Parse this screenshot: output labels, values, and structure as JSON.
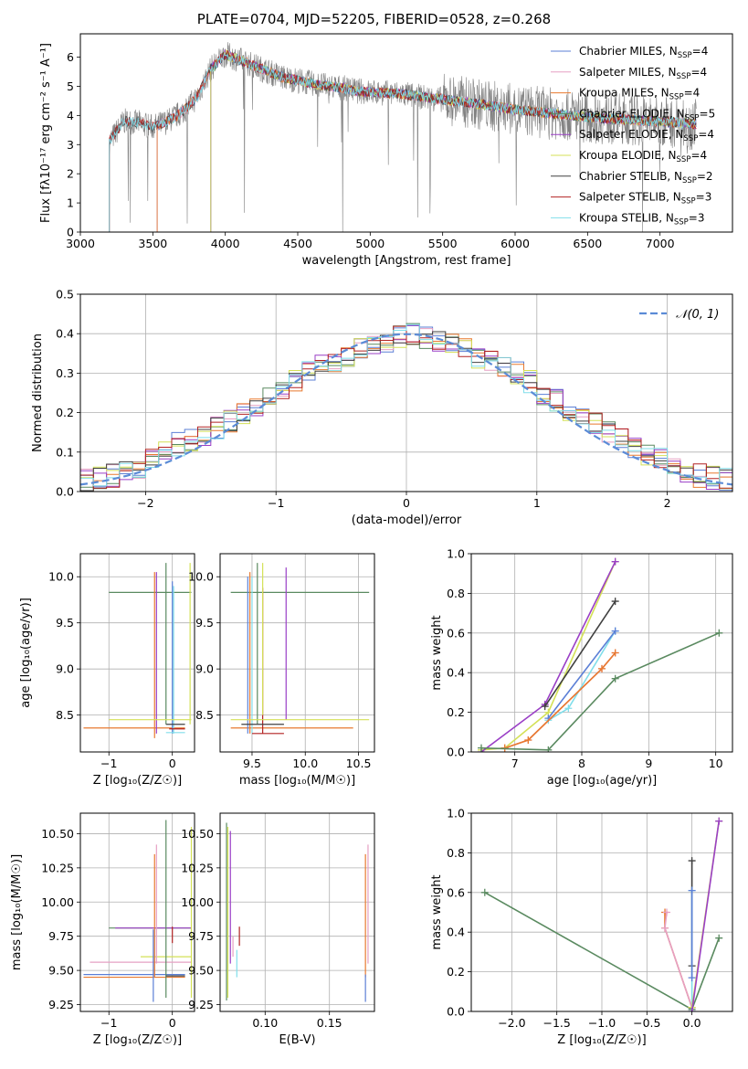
{
  "figure_title": "PLATE=0704, MJD=52205, FIBERID=0528, z=0.268",
  "colors": {
    "Chabrier MILES": "#5b7fd6",
    "Salpeter MILES": "#e6a0c4",
    "Kroupa MILES": "#e8792f",
    "Chabrier ELODIE": "#5a8a60",
    "Salpeter ELODIE": "#9a3fc6",
    "Kroupa ELODIE": "#d4e157",
    "Chabrier STELIB": "#404040",
    "Salpeter STELIB": "#b22222",
    "Kroupa STELIB": "#80deea",
    "data": "#808080",
    "normal": "#5b8bd6"
  },
  "legend_spectrum": [
    {
      "name": "Chabrier MILES",
      "label": "Chabrier MILES, N",
      "n": "=4"
    },
    {
      "name": "Salpeter MILES",
      "label": "Salpeter MILES, N",
      "n": "=4"
    },
    {
      "name": "Kroupa MILES",
      "label": "Kroupa MILES, N",
      "n": "=4"
    },
    {
      "name": "Chabrier ELODIE",
      "label": "Chabrier ELODIE, N",
      "n": "=5"
    },
    {
      "name": "Salpeter ELODIE",
      "label": "Salpeter ELODIE, N",
      "n": "=4"
    },
    {
      "name": "Kroupa ELODIE",
      "label": "Kroupa ELODIE, N",
      "n": "=4"
    },
    {
      "name": "Chabrier STELIB",
      "label": "Chabrier STELIB, N",
      "n": "=2"
    },
    {
      "name": "Salpeter STELIB",
      "label": "Salpeter STELIB, N",
      "n": "=3"
    },
    {
      "name": "Kroupa STELIB",
      "label": "Kroupa STELIB, N",
      "n": "=3"
    }
  ],
  "legend_sub": "SSP",
  "legend_normal": "𝒩(0, 1)",
  "chart_data": [
    {
      "id": "spectrum",
      "type": "line",
      "xlabel": "wavelength [Angstrom, rest frame]",
      "ylabel": "Flux [fλ10⁻¹⁷ erg cm⁻² s⁻¹ A⁻¹]",
      "xlim": [
        3000,
        7500
      ],
      "ylim": [
        0,
        6.8
      ],
      "xticks": [
        3000,
        3500,
        4000,
        4500,
        5000,
        5500,
        6000,
        6500,
        7000
      ],
      "yticks": [
        0,
        1,
        2,
        3,
        4,
        5,
        6
      ],
      "grid": false,
      "legend": "upper right",
      "continuum": [
        [
          3200,
          3.1
        ],
        [
          3300,
          3.8
        ],
        [
          3400,
          3.75
        ],
        [
          3500,
          3.6
        ],
        [
          3600,
          3.8
        ],
        [
          3700,
          4.1
        ],
        [
          3800,
          4.6
        ],
        [
          3900,
          5.6
        ],
        [
          4000,
          6.1
        ],
        [
          4100,
          5.9
        ],
        [
          4200,
          5.7
        ],
        [
          4300,
          5.5
        ],
        [
          4400,
          5.3
        ],
        [
          4500,
          5.2
        ],
        [
          4600,
          5.1
        ],
        [
          4700,
          5.0
        ],
        [
          4800,
          4.95
        ],
        [
          4900,
          4.85
        ],
        [
          5000,
          4.8
        ],
        [
          5200,
          4.75
        ],
        [
          5400,
          4.6
        ],
        [
          5600,
          4.5
        ],
        [
          5800,
          4.35
        ],
        [
          6000,
          4.2
        ],
        [
          6200,
          4.1
        ],
        [
          6400,
          4.0
        ],
        [
          6600,
          3.9
        ],
        [
          6800,
          3.85
        ],
        [
          7000,
          3.8
        ],
        [
          7250,
          3.7
        ]
      ]
    },
    {
      "id": "residuals",
      "type": "histogram",
      "xlabel": "(data-model)/error",
      "ylabel": "Normed distribution",
      "xlim": [
        -2.5,
        2.5
      ],
      "ylim": [
        0,
        0.5
      ],
      "xticks": [
        -2,
        -1,
        0,
        1,
        2
      ],
      "yticks": [
        0,
        0.1,
        0.2,
        0.3,
        0.4,
        0.5
      ],
      "grid": true,
      "legend": "upper right",
      "bin_width": 0.1,
      "mean_profile": [
        0.03,
        0.035,
        0.04,
        0.05,
        0.06,
        0.08,
        0.1,
        0.12,
        0.13,
        0.14,
        0.16,
        0.18,
        0.2,
        0.22,
        0.24,
        0.26,
        0.28,
        0.3,
        0.32,
        0.33,
        0.34,
        0.36,
        0.37,
        0.38,
        0.39,
        0.4,
        0.39,
        0.38,
        0.37,
        0.36,
        0.34,
        0.33,
        0.31,
        0.3,
        0.28,
        0.25,
        0.23,
        0.21,
        0.19,
        0.17,
        0.15,
        0.13,
        0.11,
        0.09,
        0.08,
        0.06,
        0.05,
        0.04,
        0.035,
        0.03
      ]
    },
    {
      "id": "age-vs-Z",
      "type": "scatter",
      "xlabel": "Z [log₁₀(Z/Z☉)]",
      "ylabel": "age  [log₁₀(age/yr)]",
      "xlim": [
        -1.45,
        0.35
      ],
      "ylim": [
        8.1,
        10.25
      ],
      "xticks": [
        -1,
        0
      ],
      "yticks": [
        8.5,
        9.0,
        9.5,
        10.0
      ],
      "grid": true,
      "segments": [
        {
          "series": "Chabrier ELODIE",
          "x": [
            -1.0,
            0.3
          ],
          "y": [
            9.83,
            9.83
          ]
        },
        {
          "series": "Chabrier ELODIE",
          "x": [
            -0.1,
            -0.1
          ],
          "y": [
            8.4,
            10.15
          ]
        },
        {
          "series": "Kroupa MILES",
          "x": [
            -1.4,
            0.2
          ],
          "y": [
            8.36,
            8.36
          ]
        },
        {
          "series": "Kroupa MILES",
          "x": [
            -0.28,
            -0.28
          ],
          "y": [
            8.25,
            10.05
          ]
        },
        {
          "series": "Salpeter ELODIE",
          "x": [
            -0.25,
            -0.25
          ],
          "y": [
            8.3,
            10.05
          ]
        },
        {
          "series": "Chabrier MILES",
          "x": [
            0.0,
            0.0
          ],
          "y": [
            8.3,
            9.95
          ]
        },
        {
          "series": "Kroupa STELIB",
          "x": [
            0.02,
            0.02
          ],
          "y": [
            8.3,
            9.9
          ]
        },
        {
          "series": "Kroupa ELODIE",
          "x": [
            -1.0,
            0.3
          ],
          "y": [
            8.45,
            8.45
          ]
        },
        {
          "series": "Kroupa ELODIE",
          "x": [
            0.28,
            0.28
          ],
          "y": [
            8.4,
            10.15
          ]
        },
        {
          "series": "Chabrier STELIB",
          "x": [
            -0.1,
            0.2
          ],
          "y": [
            8.4,
            8.4
          ]
        },
        {
          "series": "Salpeter STELIB",
          "x": [
            -0.05,
            0.2
          ],
          "y": [
            8.35,
            8.35
          ]
        },
        {
          "series": "Kroupa STELIB",
          "x": [
            -0.1,
            0.2
          ],
          "y": [
            8.31,
            8.31
          ]
        }
      ]
    },
    {
      "id": "age-vs-mass",
      "type": "scatter",
      "xlabel": "mass [log₁₀(M/M☉)]",
      "ylabel": "",
      "xlim": [
        9.2,
        10.65
      ],
      "ylim": [
        8.1,
        10.25
      ],
      "xticks": [
        9.5,
        10.0,
        10.5
      ],
      "yticks": [
        8.5,
        9.0,
        9.5,
        10.0
      ],
      "grid": true,
      "segments": [
        {
          "series": "Chabrier ELODIE",
          "x": [
            9.3,
            10.6
          ],
          "y": [
            9.83,
            9.83
          ]
        },
        {
          "series": "Chabrier ELODIE",
          "x": [
            9.55,
            9.55
          ],
          "y": [
            8.4,
            10.15
          ]
        },
        {
          "series": "Kroupa MILES",
          "x": [
            9.3,
            10.45
          ],
          "y": [
            8.36,
            8.36
          ]
        },
        {
          "series": "Kroupa MILES",
          "x": [
            9.48,
            9.48
          ],
          "y": [
            8.3,
            10.05
          ]
        },
        {
          "series": "Salpeter ELODIE",
          "x": [
            9.82,
            9.82
          ],
          "y": [
            8.45,
            10.1
          ]
        },
        {
          "series": "Salpeter STELIB",
          "x": [
            9.6,
            9.6
          ],
          "y": [
            8.3,
            9.88
          ]
        },
        {
          "series": "Chabrier MILES",
          "x": [
            9.46,
            9.46
          ],
          "y": [
            8.3,
            10.0
          ]
        },
        {
          "series": "Kroupa STELIB",
          "x": [
            9.5,
            9.5
          ],
          "y": [
            8.3,
            10.0
          ]
        },
        {
          "series": "Kroupa ELODIE",
          "x": [
            9.6,
            9.6
          ],
          "y": [
            8.5,
            10.15
          ]
        },
        {
          "series": "Kroupa ELODIE",
          "x": [
            9.3,
            10.6
          ],
          "y": [
            8.45,
            8.45
          ]
        },
        {
          "series": "Chabrier STELIB",
          "x": [
            9.4,
            9.8
          ],
          "y": [
            8.4,
            8.4
          ]
        },
        {
          "series": "Salpeter STELIB",
          "x": [
            9.5,
            9.8
          ],
          "y": [
            8.3,
            8.3
          ]
        }
      ]
    },
    {
      "id": "mass-weight-vs-age",
      "type": "line",
      "xlabel": "age  [log₁₀(age/yr)]",
      "ylabel": "mass weight",
      "xlim": [
        6.35,
        10.25
      ],
      "ylim": [
        0,
        1.0
      ],
      "xticks": [
        7,
        8,
        9,
        10
      ],
      "yticks": [
        0.0,
        0.2,
        0.4,
        0.6,
        0.8,
        1.0
      ],
      "grid": true,
      "series": [
        {
          "name": "Kroupa ELODIE",
          "x": [
            6.5,
            6.85,
            7.5,
            8.5
          ],
          "y": [
            0.01,
            0.02,
            0.2,
            0.96
          ]
        },
        {
          "name": "Salpeter ELODIE",
          "x": [
            6.5,
            7.45,
            8.5
          ],
          "y": [
            0.0,
            0.24,
            0.96
          ]
        },
        {
          "name": "Chabrier STELIB",
          "x": [
            7.45,
            8.5
          ],
          "y": [
            0.23,
            0.76
          ]
        },
        {
          "name": "Kroupa STELIB",
          "x": [
            7.5,
            7.8,
            8.5
          ],
          "y": [
            0.16,
            0.22,
            0.61
          ]
        },
        {
          "name": "Chabrier MILES",
          "x": [
            7.5,
            8.5
          ],
          "y": [
            0.17,
            0.61
          ]
        },
        {
          "name": "Salpeter MILES",
          "x": [
            6.85,
            7.2,
            8.3,
            8.5
          ],
          "y": [
            0.02,
            0.06,
            0.42,
            0.5
          ]
        },
        {
          "name": "Kroupa MILES",
          "x": [
            6.85,
            7.2,
            8.3,
            8.5
          ],
          "y": [
            0.02,
            0.06,
            0.42,
            0.5
          ]
        },
        {
          "name": "Chabrier ELODIE",
          "x": [
            6.5,
            7.5,
            8.5,
            10.05
          ],
          "y": [
            0.02,
            0.01,
            0.37,
            0.6
          ]
        }
      ]
    },
    {
      "id": "mass-vs-Z",
      "type": "scatter",
      "xlabel": "Z [log₁₀(Z/Z☉)]",
      "ylabel": "mass [log₁₀(M/M☉)]",
      "xlim": [
        -1.45,
        0.35
      ],
      "ylim": [
        9.2,
        10.65
      ],
      "xticks": [
        -1,
        0
      ],
      "yticks": [
        9.25,
        9.5,
        9.75,
        10.0,
        10.25,
        10.5
      ],
      "grid": true,
      "segments": [
        {
          "series": "Chabrier MILES",
          "x": [
            -1.4,
            0.2
          ],
          "y": [
            9.47,
            9.47
          ]
        },
        {
          "series": "Kroupa MILES",
          "x": [
            -1.4,
            0.2
          ],
          "y": [
            9.45,
            9.45
          ]
        },
        {
          "series": "Salpeter MILES",
          "x": [
            -1.3,
            0.3
          ],
          "y": [
            9.56,
            9.56
          ]
        },
        {
          "series": "Kroupa ELODIE",
          "x": [
            -0.5,
            0.3
          ],
          "y": [
            9.6,
            9.6
          ]
        },
        {
          "series": "Chabrier ELODIE",
          "x": [
            -1.0,
            0.3
          ],
          "y": [
            9.81,
            9.81
          ]
        },
        {
          "series": "Salpeter ELODIE",
          "x": [
            -0.9,
            0.3
          ],
          "y": [
            9.81,
            9.81
          ]
        },
        {
          "series": "Chabrier ELODIE",
          "x": [
            -0.1,
            -0.1
          ],
          "y": [
            9.3,
            10.6
          ]
        },
        {
          "series": "Kroupa MILES",
          "x": [
            -0.28,
            -0.28
          ],
          "y": [
            9.45,
            10.35
          ]
        },
        {
          "series": "Salpeter MILES",
          "x": [
            -0.25,
            -0.25
          ],
          "y": [
            9.55,
            10.42
          ]
        },
        {
          "series": "Chabrier MILES",
          "x": [
            -0.3,
            -0.3
          ],
          "y": [
            9.27,
            9.8
          ]
        },
        {
          "series": "Salpeter STELIB",
          "x": [
            0.0,
            0.0
          ],
          "y": [
            9.7,
            9.82
          ]
        },
        {
          "series": "Kroupa ELODIE",
          "x": [
            0.3,
            0.3
          ],
          "y": [
            9.3,
            10.55
          ]
        },
        {
          "series": "Chabrier STELIB",
          "x": [
            -0.1,
            0.2
          ],
          "y": [
            9.46,
            9.46
          ]
        }
      ]
    },
    {
      "id": "mass-vs-EBV",
      "type": "scatter",
      "xlabel": "E(B-V)",
      "ylabel": "",
      "xlim": [
        0.065,
        0.185
      ],
      "ylim": [
        9.2,
        10.65
      ],
      "xticks": [
        0.1,
        0.15
      ],
      "yticks": [
        9.25,
        9.5,
        9.75,
        10.0,
        10.25,
        10.5
      ],
      "grid": true,
      "segments": [
        {
          "series": "Chabrier ELODIE",
          "x": [
            0.07,
            0.07
          ],
          "y": [
            9.28,
            10.58
          ]
        },
        {
          "series": "Kroupa ELODIE",
          "x": [
            0.071,
            0.071
          ],
          "y": [
            9.3,
            10.55
          ]
        },
        {
          "series": "Salpeter ELODIE",
          "x": [
            0.073,
            0.073
          ],
          "y": [
            9.55,
            10.52
          ]
        },
        {
          "series": "Salpeter MILES",
          "x": [
            0.075,
            0.075
          ],
          "y": [
            9.6,
            9.75
          ]
        },
        {
          "series": "Salpeter STELIB",
          "x": [
            0.08,
            0.08
          ],
          "y": [
            9.68,
            9.82
          ]
        },
        {
          "series": "Kroupa STELIB",
          "x": [
            0.078,
            0.078
          ],
          "y": [
            9.45,
            9.65
          ]
        },
        {
          "series": "Kroupa MILES",
          "x": [
            0.178,
            0.178
          ],
          "y": [
            9.45,
            10.35
          ]
        },
        {
          "series": "Salpeter MILES",
          "x": [
            0.18,
            0.18
          ],
          "y": [
            9.55,
            10.42
          ]
        },
        {
          "series": "Chabrier MILES",
          "x": [
            0.178,
            0.178
          ],
          "y": [
            9.27,
            9.47
          ]
        }
      ]
    },
    {
      "id": "mass-weight-vs-Z",
      "type": "line",
      "xlabel": "Z [log₁₀(Z/Z☉)]",
      "ylabel": "mass weight",
      "xlim": [
        -2.45,
        0.45
      ],
      "ylim": [
        0,
        1.0
      ],
      "xticks": [
        -2.0,
        -1.5,
        -1.0,
        -0.5,
        0.0
      ],
      "yticks": [
        0.0,
        0.2,
        0.4,
        0.6,
        0.8,
        1.0
      ],
      "grid": true,
      "series": [
        {
          "name": "Chabrier ELODIE",
          "x": [
            -2.3,
            0.0,
            0.3
          ],
          "y": [
            0.6,
            0.01,
            0.37
          ]
        },
        {
          "name": "Kroupa MILES",
          "x": [
            -0.3,
            -0.3,
            0.0
          ],
          "y": [
            0.5,
            0.42,
            0.02
          ]
        },
        {
          "name": "Salpeter MILES",
          "x": [
            -0.28,
            -0.3,
            0.0
          ],
          "y": [
            0.5,
            0.42,
            0.02
          ]
        },
        {
          "name": "Chabrier STELIB",
          "x": [
            0.0,
            0.0
          ],
          "y": [
            0.76,
            0.23
          ]
        },
        {
          "name": "Kroupa STELIB",
          "x": [
            0.0,
            0.0
          ],
          "y": [
            0.61,
            0.0
          ]
        },
        {
          "name": "Chabrier MILES",
          "x": [
            0.0,
            0.0
          ],
          "y": [
            0.61,
            0.17
          ]
        },
        {
          "name": "Kroupa ELODIE",
          "x": [
            0.0,
            0.3
          ],
          "y": [
            0.02,
            0.96
          ]
        },
        {
          "name": "Salpeter ELODIE",
          "x": [
            0.0,
            0.3
          ],
          "y": [
            0.0,
            0.96
          ]
        }
      ]
    }
  ]
}
